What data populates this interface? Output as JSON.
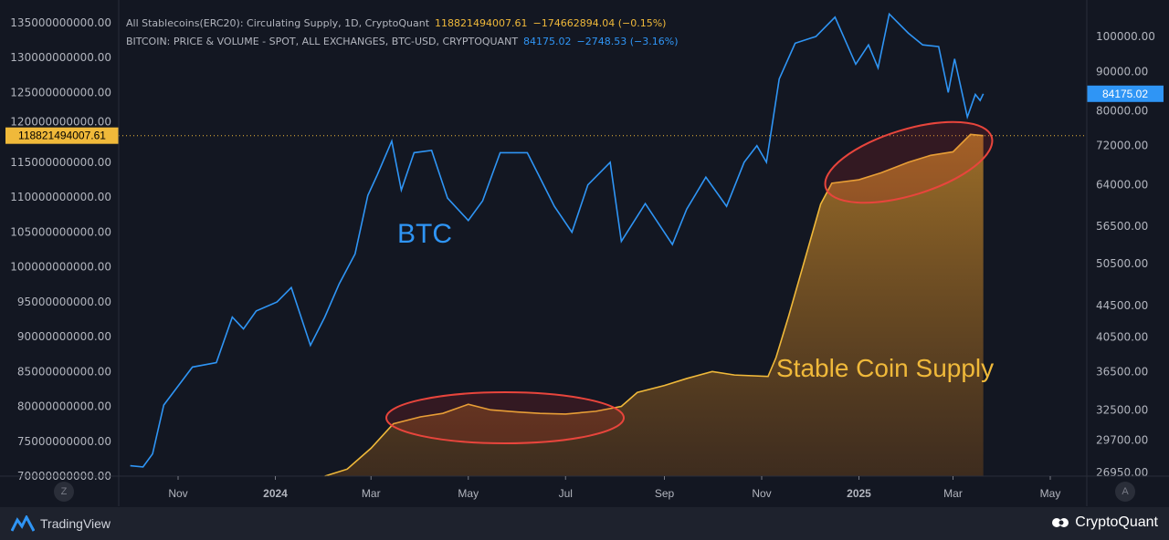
{
  "legend": {
    "stable": {
      "title": "All Stablecoins(ERC20): Circulating Supply, 1D, CryptoQuant",
      "value": "118821494007.61",
      "change": "−174662894.04 (−0.15%)"
    },
    "btc": {
      "title": "BITCOIN: PRICE & VOLUME - SPOT, ALL EXCHANGES, BTC-USD, CRYPTOQUANT",
      "value": "84175.02",
      "change": "−2748.53 (−3.16%)"
    }
  },
  "colors": {
    "btc": "#2f95f5",
    "stable": "#f0b93a",
    "ellipse": "#e8453c",
    "bg": "#131722"
  },
  "footer": {
    "left_logo": "TradingView",
    "right_logo": "CryptoQuant"
  },
  "axis_buttons": {
    "left": "Z",
    "right": "A"
  },
  "chart_data": {
    "type": "line",
    "annotations": [
      "BTC",
      "Stable Coin Supply"
    ],
    "left_axis": {
      "scale": "linear",
      "ylim": [
        70000000000,
        135000000000
      ],
      "ticks": [
        "135000000000.00",
        "130000000000.00",
        "125000000000.00",
        "120000000000.00",
        "115000000000.00",
        "110000000000.00",
        "105000000000.00",
        "100000000000.00",
        "95000000000.00",
        "90000000000.00",
        "85000000000.00",
        "80000000000.00",
        "75000000000.00",
        "70000000000.00"
      ],
      "last_label": "118821494007.61"
    },
    "right_axis": {
      "scale": "log",
      "ylim": [
        26000,
        108000
      ],
      "ticks": [
        "100000.00",
        "90000.00",
        "80000.00",
        "72000.00",
        "64000.00",
        "56500.00",
        "50500.00",
        "44500.00",
        "40500.00",
        "36500.00",
        "32500.00",
        "29700.00",
        "26950.00"
      ],
      "last_label": "84175.02"
    },
    "x_ticks": [
      [
        "Nov",
        "2023-11-01"
      ],
      [
        "2024",
        "2024-01-01"
      ],
      [
        "Mar",
        "2024-03-01"
      ],
      [
        "May",
        "2024-05-01"
      ],
      [
        "Jul",
        "2024-07-01"
      ],
      [
        "Sep",
        "2024-09-01"
      ],
      [
        "Nov",
        "2024-11-01"
      ],
      [
        "2025",
        "2025-01-01"
      ],
      [
        "Mar",
        "2025-03-01"
      ],
      [
        "May",
        "2025-05-01"
      ]
    ],
    "series": [
      {
        "name": "BTC",
        "axis": "right",
        "points": [
          [
            "2023-10-02",
            27500
          ],
          [
            "2023-10-10",
            27400
          ],
          [
            "2023-10-16",
            28500
          ],
          [
            "2023-10-23",
            33000
          ],
          [
            "2023-10-30",
            34500
          ],
          [
            "2023-11-10",
            37000
          ],
          [
            "2023-11-25",
            37500
          ],
          [
            "2023-12-05",
            43000
          ],
          [
            "2023-12-12",
            41500
          ],
          [
            "2023-12-20",
            43800
          ],
          [
            "2024-01-02",
            45000
          ],
          [
            "2024-01-11",
            47000
          ],
          [
            "2024-01-23",
            39500
          ],
          [
            "2024-02-01",
            43000
          ],
          [
            "2024-02-10",
            47500
          ],
          [
            "2024-02-20",
            52000
          ],
          [
            "2024-02-28",
            62000
          ],
          [
            "2024-03-05",
            66000
          ],
          [
            "2024-03-14",
            73000
          ],
          [
            "2024-03-20",
            63000
          ],
          [
            "2024-03-28",
            70500
          ],
          [
            "2024-04-08",
            71000
          ],
          [
            "2024-04-18",
            61500
          ],
          [
            "2024-05-01",
            57500
          ],
          [
            "2024-05-10",
            61000
          ],
          [
            "2024-05-21",
            70500
          ],
          [
            "2024-06-07",
            70500
          ],
          [
            "2024-06-14",
            66000
          ],
          [
            "2024-06-24",
            60000
          ],
          [
            "2024-07-05",
            55500
          ],
          [
            "2024-07-15",
            64000
          ],
          [
            "2024-07-29",
            68500
          ],
          [
            "2024-08-05",
            54000
          ],
          [
            "2024-08-20",
            60500
          ],
          [
            "2024-09-06",
            53500
          ],
          [
            "2024-09-15",
            59500
          ],
          [
            "2024-09-27",
            65500
          ],
          [
            "2024-10-10",
            60000
          ],
          [
            "2024-10-21",
            68500
          ],
          [
            "2024-10-29",
            72000
          ],
          [
            "2024-11-04",
            68500
          ],
          [
            "2024-11-12",
            88000
          ],
          [
            "2024-11-22",
            98000
          ],
          [
            "2024-12-05",
            100000
          ],
          [
            "2024-12-17",
            106000
          ],
          [
            "2024-12-30",
            92000
          ],
          [
            "2025-01-07",
            97500
          ],
          [
            "2025-01-13",
            91000
          ],
          [
            "2025-01-20",
            107000
          ],
          [
            "2025-02-01",
            101000
          ],
          [
            "2025-02-10",
            97500
          ],
          [
            "2025-02-20",
            97000
          ],
          [
            "2025-02-26",
            84500
          ],
          [
            "2025-03-02",
            93500
          ],
          [
            "2025-03-10",
            78500
          ],
          [
            "2025-03-15",
            84000
          ],
          [
            "2025-03-18",
            82500
          ],
          [
            "2025-03-20",
            84175
          ]
        ]
      },
      {
        "name": "Stablecoin Supply",
        "axis": "left",
        "points": [
          [
            "2024-02-01",
            69500000000
          ],
          [
            "2024-02-15",
            71000000000
          ],
          [
            "2024-03-01",
            74000000000
          ],
          [
            "2024-03-15",
            77500000000
          ],
          [
            "2024-04-01",
            78500000000
          ],
          [
            "2024-04-15",
            79000000000
          ],
          [
            "2024-05-01",
            80300000000
          ],
          [
            "2024-05-15",
            79500000000
          ],
          [
            "2024-06-01",
            79200000000
          ],
          [
            "2024-06-15",
            79000000000
          ],
          [
            "2024-07-01",
            78900000000
          ],
          [
            "2024-07-20",
            79300000000
          ],
          [
            "2024-08-05",
            80000000000
          ],
          [
            "2024-08-15",
            82000000000
          ],
          [
            "2024-09-01",
            83000000000
          ],
          [
            "2024-09-15",
            84000000000
          ],
          [
            "2024-10-01",
            85000000000
          ],
          [
            "2024-10-15",
            84500000000
          ],
          [
            "2024-11-05",
            84300000000
          ],
          [
            "2024-11-10",
            87000000000
          ],
          [
            "2024-11-18",
            93000000000
          ],
          [
            "2024-11-28",
            101000000000
          ],
          [
            "2024-12-08",
            109000000000
          ],
          [
            "2024-12-15",
            112000000000
          ],
          [
            "2025-01-01",
            112500000000
          ],
          [
            "2025-01-15",
            113500000000
          ],
          [
            "2025-02-01",
            115000000000
          ],
          [
            "2025-02-15",
            116000000000
          ],
          [
            "2025-03-01",
            116500000000
          ],
          [
            "2025-03-12",
            119000000000
          ],
          [
            "2025-03-20",
            118821494007.61
          ]
        ]
      }
    ]
  }
}
